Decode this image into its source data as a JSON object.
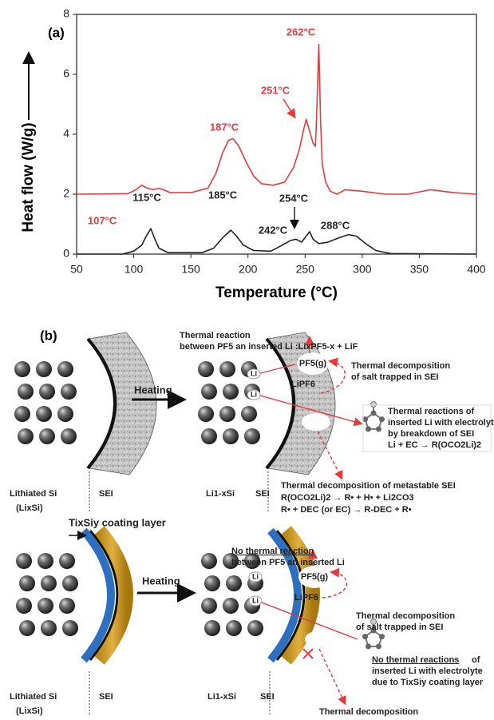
{
  "chart_data": {
    "type": "line",
    "panel_label": "(a)",
    "xlabel": "Temperature (°C)",
    "ylabel": "Heat flow (W/g)",
    "xlim": [
      50,
      400
    ],
    "xticks": [
      50,
      100,
      150,
      200,
      250,
      300,
      350,
      400
    ],
    "ylim": [
      0,
      8
    ],
    "yticks": [
      0,
      2,
      4,
      6,
      8
    ],
    "series": [
      {
        "color": "#e8393c",
        "x": [
          50,
          95,
          102,
          107,
          112,
          117,
          122,
          126,
          132,
          150,
          165,
          172,
          178,
          183,
          187,
          192,
          198,
          205,
          212,
          222,
          232,
          240,
          245,
          249,
          251,
          254,
          257,
          259,
          260,
          262,
          263.5,
          265,
          268,
          272,
          278,
          285,
          300,
          320,
          340,
          360,
          380,
          400
        ],
        "values": [
          2.0,
          2.02,
          2.15,
          2.3,
          2.2,
          2.15,
          2.2,
          2.15,
          2.05,
          2.05,
          2.2,
          2.7,
          3.4,
          3.8,
          3.85,
          3.6,
          3.1,
          2.6,
          2.35,
          2.3,
          2.4,
          2.9,
          3.5,
          4.2,
          4.5,
          4.1,
          3.7,
          3.6,
          4.5,
          7.0,
          4.5,
          3.0,
          2.4,
          2.1,
          2.0,
          2.15,
          2.1,
          2.0,
          2.0,
          2.15,
          2.05,
          2.0
        ]
      },
      {
        "color": "#222222",
        "x": [
          50,
          90,
          100,
          107,
          111,
          115,
          118,
          122,
          130,
          160,
          170,
          178,
          185,
          190,
          196,
          205,
          220,
          230,
          237,
          242,
          247,
          251,
          254,
          257,
          262,
          270,
          280,
          288,
          295,
          303,
          312,
          325,
          400
        ],
        "values": [
          0.0,
          0.0,
          0.1,
          0.3,
          0.6,
          0.85,
          0.55,
          0.2,
          0.05,
          0.05,
          0.2,
          0.55,
          0.8,
          0.6,
          0.3,
          0.12,
          0.1,
          0.3,
          0.45,
          0.5,
          0.4,
          0.6,
          0.75,
          0.5,
          0.35,
          0.4,
          0.55,
          0.65,
          0.6,
          0.35,
          0.12,
          0.02,
          0.0
        ]
      }
    ],
    "annotations": [
      {
        "text": "107°C",
        "color": "#e8393c"
      },
      {
        "text": "187°C",
        "color": "#e8393c"
      },
      {
        "text": "251°C",
        "color": "#e8393c"
      },
      {
        "text": "262°C",
        "color": "#e8393c"
      },
      {
        "text": "115°C",
        "color": "#222222"
      },
      {
        "text": "185°C",
        "color": "#222222"
      },
      {
        "text": "242°C",
        "color": "#222222"
      },
      {
        "text": "254°C",
        "color": "#222222"
      },
      {
        "text": "288°C",
        "color": "#222222"
      }
    ]
  },
  "schematic": {
    "label": "(b)",
    "top": {
      "reaction": [
        "Thermal reaction",
        "between PF5 an inserted Li :LixPF5-x + LiF"
      ],
      "heating": "Heating",
      "gas": "PF5(g)",
      "salt": "LiPF6",
      "li": [
        "Li",
        "Li"
      ],
      "salt_note": [
        "Thermal decomposition",
        "of salt trapped in SEI"
      ],
      "electrolyte_note": [
        "Thermal reactions of",
        "inserted Li with electrolyte",
        "by breakdown of SEI",
        "Li + EC → R(OCO2Li)2"
      ],
      "sei_note": [
        "Thermal decomposition of metastable SEI",
        "R(OCO2Li)2 → R• + H• + Li2CO3",
        "R• + DEC (or EC) → R-DEC + R•"
      ],
      "left_labels": [
        "Lithiated Si",
        "(LixSi)",
        "SEI"
      ],
      "right_labels": [
        "Li1-xSi",
        "SEI"
      ]
    },
    "bottom": {
      "coating": "TixSiy coating layer",
      "reaction": [
        "No thermal reaction",
        "between PF5 an inserted Li"
      ],
      "heating": "Heating",
      "gas": "PF5(g)",
      "salt": "LiPF6",
      "li": [
        "Li",
        "Li"
      ],
      "salt_note": [
        "Thermal decomposition",
        "of salt trapped in SEI"
      ],
      "electrolyte_note": [
        "No thermal reactions",
        "of",
        "inserted Li with electrolyte",
        "due to TixSiy coating layer"
      ],
      "sei_note": [
        "Thermal decomposition"
      ],
      "left_labels": [
        "Lithiated Si",
        "(LixSi)",
        "SEI"
      ],
      "right_labels": [
        "Li1-xSi",
        "SEI"
      ]
    }
  }
}
